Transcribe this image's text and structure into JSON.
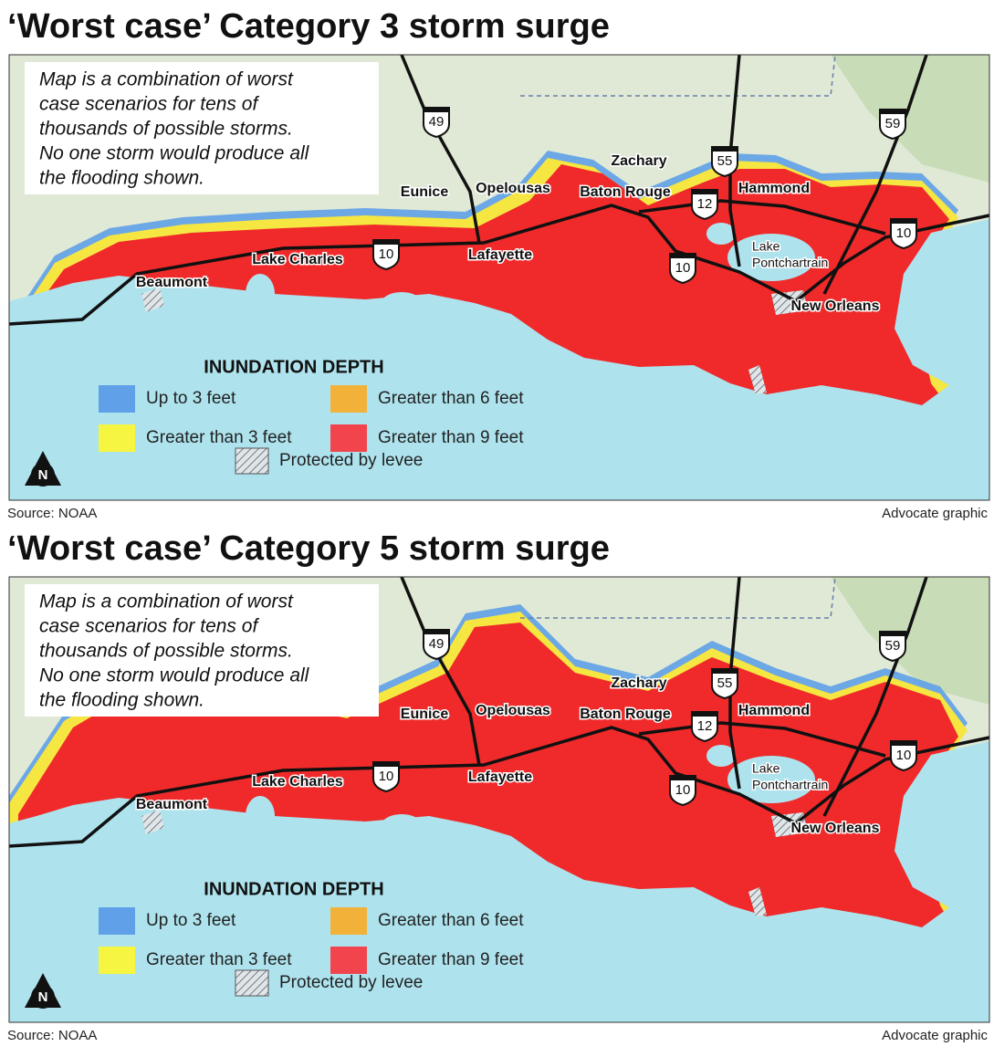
{
  "panels": [
    {
      "title": "‘Worst case’ Category 3 storm surge",
      "note": [
        "Map is a combination of worst",
        "case scenarios for tens of",
        "thousands of possible storms.",
        "No one storm would produce all",
        "the flooding shown."
      ],
      "cities": [
        "Eunice",
        "Opelousas",
        "Zachary",
        "Baton Rouge",
        "Hammond",
        "Lake Charles",
        "Lafayette",
        "Beaumont",
        "New Orleans"
      ],
      "lake": [
        "Lake",
        "Pontchartrain"
      ],
      "highways": [
        "49",
        "55",
        "59",
        "12",
        "10",
        "10",
        "10"
      ],
      "legend": {
        "title": "INUNDATION DEPTH",
        "items": [
          {
            "label": "Up to 3 feet",
            "color": "#5fa0e8"
          },
          {
            "label": "Greater than 6 feet",
            "color": "#f2b23a"
          },
          {
            "label": "Greater than 3 feet",
            "color": "#f5f542"
          },
          {
            "label": "Greater than 9 feet",
            "color": "#f2444c"
          }
        ],
        "levee": "Protected by levee"
      },
      "north": "N",
      "source": "Source: NOAA",
      "credit": "Advocate graphic"
    },
    {
      "title": "‘Worst case’ Category 5 storm surge",
      "note": [
        "Map is a combination of worst",
        "case scenarios for tens of",
        "thousands of possible storms.",
        "No one storm would produce all",
        "the flooding shown."
      ],
      "cities": [
        "Eunice",
        "Opelousas",
        "Zachary",
        "Baton Rouge",
        "Hammond",
        "Lake Charles",
        "Lafayette",
        "Beaumont",
        "New Orleans"
      ],
      "lake": [
        "Lake",
        "Pontchartrain"
      ],
      "highways": [
        "49",
        "55",
        "59",
        "12",
        "10",
        "10",
        "10"
      ],
      "legend": {
        "title": "INUNDATION DEPTH",
        "items": [
          {
            "label": "Up to 3 feet",
            "color": "#5fa0e8"
          },
          {
            "label": "Greater than 6 feet",
            "color": "#f2b23a"
          },
          {
            "label": "Greater than 3 feet",
            "color": "#f5f542"
          },
          {
            "label": "Greater than 9 feet",
            "color": "#f2444c"
          }
        ],
        "levee": "Protected by levee"
      },
      "north": "N",
      "source": "Source: NOAA",
      "credit": "Advocate graphic"
    }
  ]
}
